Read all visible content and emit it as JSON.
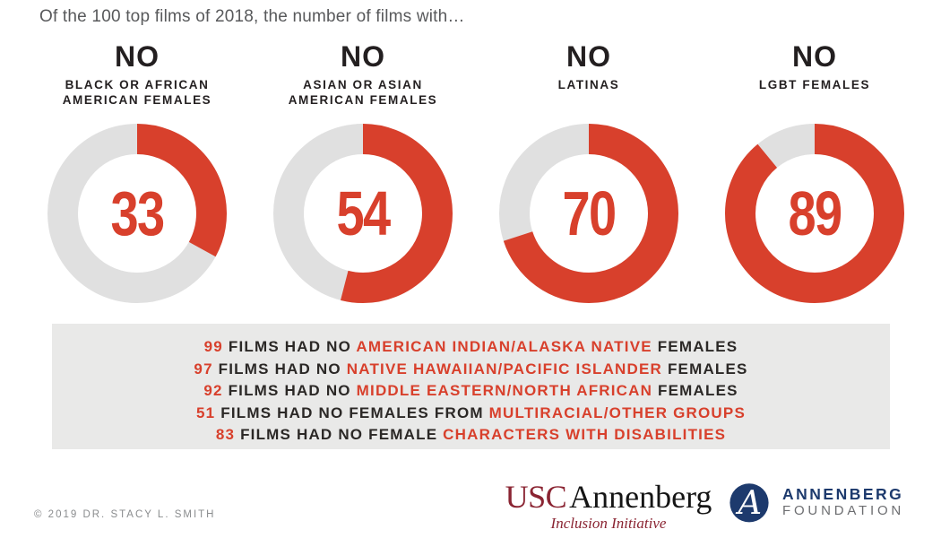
{
  "title": "Of the 100 top films of 2018, the number of films with…",
  "colors": {
    "accent_red": "#d8402c",
    "track_gray": "#e0e0e0",
    "box_gray": "#e9e9e8",
    "ink": "#231f20",
    "title_gray": "#58595b",
    "footer_gray": "#8a8c8e",
    "usc_cardinal": "#8a2432",
    "foundation_navy": "#1d3a6d",
    "foundation_gray": "#6d6e71"
  },
  "donuts": [
    {
      "heading": "NO",
      "label": "BLACK OR AFRICAN\nAMERICAN FEMALES",
      "value": 33
    },
    {
      "heading": "NO",
      "label": "ASIAN OR ASIAN\nAMERICAN FEMALES",
      "value": 54
    },
    {
      "heading": "NO",
      "label": "LATINAS",
      "value": 70
    },
    {
      "heading": "NO",
      "label": "LGBT FEMALES",
      "value": 89
    }
  ],
  "summary_box": {
    "lines": [
      {
        "segments": [
          {
            "text": "99",
            "highlight": true
          },
          {
            "text": " FILMS HAD NO ",
            "highlight": false
          },
          {
            "text": "AMERICAN INDIAN/ALASKA NATIVE",
            "highlight": true
          },
          {
            "text": " FEMALES",
            "highlight": false
          }
        ]
      },
      {
        "segments": [
          {
            "text": "97",
            "highlight": true
          },
          {
            "text": " FILMS HAD NO ",
            "highlight": false
          },
          {
            "text": "NATIVE HAWAIIAN/PACIFIC ISLANDER",
            "highlight": true
          },
          {
            "text": " FEMALES",
            "highlight": false
          }
        ]
      },
      {
        "segments": [
          {
            "text": "92",
            "highlight": true
          },
          {
            "text": " FILMS HAD NO ",
            "highlight": false
          },
          {
            "text": "MIDDLE EASTERN/NORTH AFRICAN",
            "highlight": true
          },
          {
            "text": " FEMALES",
            "highlight": false
          }
        ]
      },
      {
        "segments": [
          {
            "text": "51",
            "highlight": true
          },
          {
            "text": " FILMS HAD NO FEMALES FROM ",
            "highlight": false
          },
          {
            "text": "MULTIRACIAL/OTHER GROUPS",
            "highlight": true
          }
        ]
      },
      {
        "segments": [
          {
            "text": "83",
            "highlight": true
          },
          {
            "text": " FILMS HAD NO FEMALE ",
            "highlight": false
          },
          {
            "text": "CHARACTERS WITH DISABILITIES",
            "highlight": true
          }
        ]
      }
    ]
  },
  "footer": {
    "copyright": "© 2019 DR. STACY L. SMITH"
  },
  "logos": {
    "usc": {
      "usc": "USC",
      "annenberg": "Annenberg",
      "tagline": "Inclusion Initiative"
    },
    "foundation": {
      "monogram": "A",
      "line1": "ANNENBERG",
      "line2": "FOUNDATION"
    }
  },
  "chart_data": {
    "type": "pie",
    "subtype": "donut",
    "title": "Of the 100 top films of 2018, the number of films with…",
    "units": "films out of 100",
    "start_angle_deg": 0,
    "direction": "clockwise",
    "filled_color": "#d8402c",
    "track_color": "#e0e0e0",
    "series": [
      {
        "name": "NO BLACK OR AFRICAN AMERICAN FEMALES",
        "value": 33,
        "total": 100
      },
      {
        "name": "NO ASIAN OR ASIAN AMERICAN FEMALES",
        "value": 54,
        "total": 100
      },
      {
        "name": "NO LATINAS",
        "value": 70,
        "total": 100
      },
      {
        "name": "NO LGBT FEMALES",
        "value": 89,
        "total": 100
      }
    ],
    "additional_stats": [
      {
        "value": 99,
        "label": "FILMS HAD NO AMERICAN INDIAN/ALASKA NATIVE FEMALES"
      },
      {
        "value": 97,
        "label": "FILMS HAD NO NATIVE HAWAIIAN/PACIFIC ISLANDER FEMALES"
      },
      {
        "value": 92,
        "label": "FILMS HAD NO MIDDLE EASTERN/NORTH AFRICAN FEMALES"
      },
      {
        "value": 51,
        "label": "FILMS HAD NO FEMALES FROM MULTIRACIAL/OTHER GROUPS"
      },
      {
        "value": 83,
        "label": "FILMS HAD NO FEMALE CHARACTERS WITH DISABILITIES"
      }
    ]
  }
}
